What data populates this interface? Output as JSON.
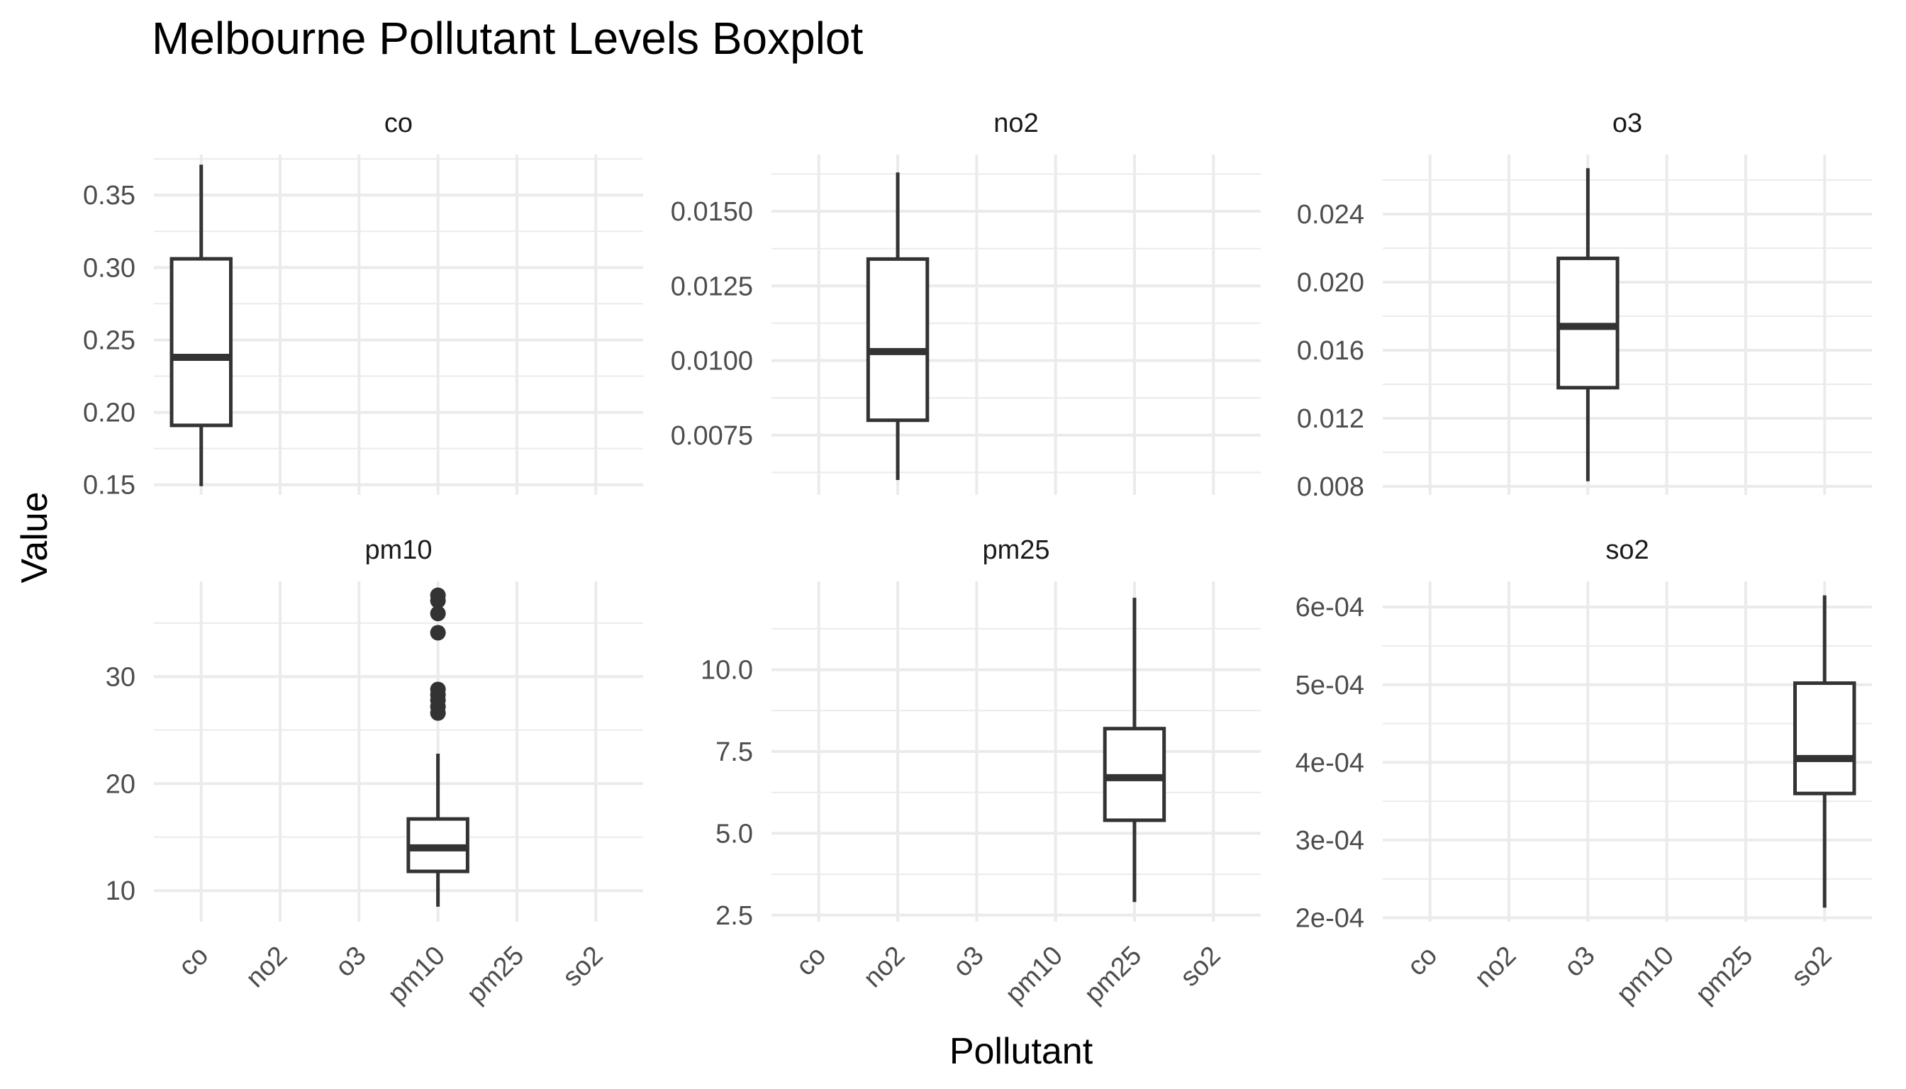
{
  "chart_data": {
    "type": "boxplot",
    "title": "Melbourne Pollutant Levels Boxplot",
    "xlabel": "Pollutant",
    "ylabel": "Value",
    "categories": [
      "co",
      "no2",
      "o3",
      "pm10",
      "pm25",
      "so2"
    ],
    "grid": true,
    "facets": [
      {
        "name": "co",
        "category": "co",
        "ylim": [
          0.143,
          0.378
        ],
        "yticks": [
          0.15,
          0.2,
          0.25,
          0.3,
          0.35
        ],
        "ytick_labels": [
          "0.15",
          "0.20",
          "0.25",
          "0.30",
          "0.35"
        ],
        "box": {
          "min": 0.149,
          "q1": 0.191,
          "median": 0.238,
          "q3": 0.306,
          "max": 0.371
        },
        "outliers": []
      },
      {
        "name": "no2",
        "category": "no2",
        "ylim": [
          0.0055,
          0.0169
        ],
        "yticks": [
          0.0075,
          0.01,
          0.0125,
          0.015
        ],
        "ytick_labels": [
          "0.0075",
          "0.0100",
          "0.0125",
          "0.0150"
        ],
        "box": {
          "min": 0.006,
          "q1": 0.008,
          "median": 0.0103,
          "q3": 0.0134,
          "max": 0.0163
        },
        "outliers": []
      },
      {
        "name": "o3",
        "category": "o3",
        "ylim": [
          0.0075,
          0.0275
        ],
        "yticks": [
          0.008,
          0.012,
          0.016,
          0.02,
          0.024
        ],
        "ytick_labels": [
          "0.008",
          "0.012",
          "0.016",
          "0.020",
          "0.024"
        ],
        "box": {
          "min": 0.0083,
          "q1": 0.0138,
          "median": 0.0174,
          "q3": 0.0214,
          "max": 0.0267
        },
        "outliers": []
      },
      {
        "name": "pm10",
        "category": "pm10",
        "ylim": [
          7.1,
          38.9
        ],
        "yticks": [
          10,
          20,
          30
        ],
        "ytick_labels": [
          "10",
          "20",
          "30"
        ],
        "box": {
          "min": 8.5,
          "q1": 11.8,
          "median": 14.0,
          "q3": 16.7,
          "max": 22.8
        },
        "outliers": [
          26.6,
          27.2,
          27.8,
          28.3,
          28.8,
          34.1,
          35.9,
          37.1,
          37.6
        ]
      },
      {
        "name": "pm25",
        "category": "pm25",
        "ylim": [
          2.3,
          12.7
        ],
        "yticks": [
          2.5,
          5.0,
          7.5,
          10.0
        ],
        "ytick_labels": [
          "2.5",
          "5.0",
          "7.5",
          "10.0"
        ],
        "box": {
          "min": 2.9,
          "q1": 5.4,
          "median": 6.7,
          "q3": 8.2,
          "max": 12.2
        },
        "outliers": []
      },
      {
        "name": "so2",
        "category": "so2",
        "ylim": [
          0.000195,
          0.000633
        ],
        "yticks": [
          0.0002,
          0.0003,
          0.0004,
          0.0005,
          0.0006
        ],
        "ytick_labels": [
          "2e-04",
          "3e-04",
          "4e-04",
          "5e-04",
          "6e-04"
        ],
        "box": {
          "min": 0.000213,
          "q1": 0.00036,
          "median": 0.000405,
          "q3": 0.000502,
          "max": 0.000615
        },
        "outliers": []
      }
    ]
  }
}
